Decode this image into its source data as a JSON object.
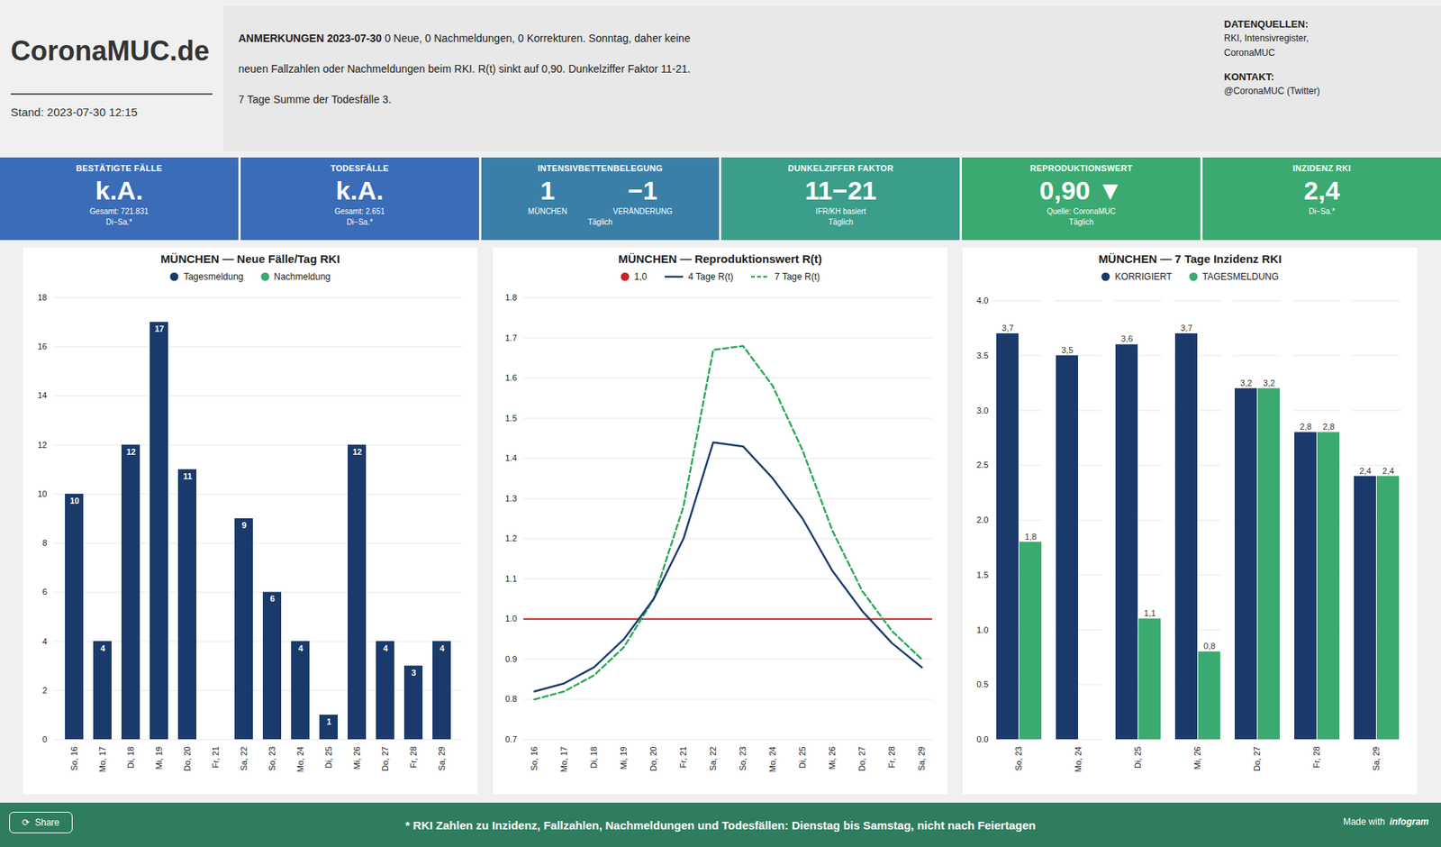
{
  "title": "CoronaMUC.de",
  "subtitle": "Stand: 2023-07-30 12:15",
  "background": "#f0f0f0",
  "panel_color": "#e8e8e8",
  "footer_color": "#2e7d5e",
  "header": [
    {
      "title": "ANMERKUNGEN 2023-07-30",
      "text": [
        " 0 Neue, 0 Nachmeldungen, 0 Korrekturen. Sonntag, daher keine",
        "neuen Fallzahlen oder Nachmeldungen beim RKI. R(t) sinkt auf 0,90. Dunkelziffer Faktor 11-21.",
        "7 Tage Summe der Todesfälle 3."
      ]
    },
    {
      "title": "DATENQUELLEN:",
      "text": [
        "RKI, Intensivregister,",
        "CoronaMUC"
      ]
    },
    {
      "title": "KONTAKT:",
      "text": [
        "@CoronaMUC (Twitter)"
      ]
    }
  ],
  "kpis": [
    {
      "title": "BESTÄTIGTE FÄLLE",
      "color": "#3b6cb7",
      "values": [
        "k.A."
      ],
      "lines": [
        "Gesamt: 721.831",
        "Di−Sa.*"
      ]
    },
    {
      "title": "TODESFÄLLE",
      "color": "#3b6cb7",
      "values": [
        "k.A."
      ],
      "lines": [
        "Gesamt: 2.651",
        "Di−Sa.*"
      ]
    },
    {
      "title": "INTENSIVBETTENBELEGUNG",
      "color": "#3a7fa8",
      "values": [
        "1",
        "−1"
      ],
      "labels": [
        "MÜNCHEN",
        "VERÄNDERUNG"
      ],
      "lines": [
        "Täglich"
      ]
    },
    {
      "title": "DUNKELZIFFER FAKTOR",
      "color": "#3a9e8a",
      "values": [
        "11−21"
      ],
      "lines": [
        "IFR/KH basiert",
        "Täglich"
      ]
    },
    {
      "title": "REPRODUKTIONSWERT",
      "color": "#3aaa70",
      "values": [
        "0,90 ▼"
      ],
      "lines": [
        "Quelle: CoronaMUC",
        "Täglich"
      ]
    },
    {
      "title": "INZIDENZ RKI",
      "color": "#3aaa70",
      "values": [
        "2,4"
      ],
      "lines": [
        "Di−Sa.*"
      ]
    }
  ],
  "chart_data": [
    {
      "type": "bar",
      "title": "MÜNCHEN — Neue Fälle/Tag RKI",
      "stacked": true,
      "categories": [
        "So, 16",
        "Mo, 17",
        "Di, 18",
        "Mi, 19",
        "Do, 20",
        "Fr, 21",
        "Sa, 22",
        "So, 23",
        "Mo, 24",
        "Di, 25",
        "Mi, 26",
        "Do, 27",
        "Fr, 28",
        "Sa, 29"
      ],
      "series": [
        {
          "name": "Tagesmeldung",
          "color": "#1a3a6b",
          "values": [
            10,
            4,
            12,
            17,
            11,
            0,
            9,
            6,
            4,
            1,
            12,
            4,
            3,
            4
          ],
          "value_labels": [
            "10",
            "4",
            "12",
            "17",
            "11",
            null,
            "9",
            "6",
            "4",
            "1",
            "12",
            "4",
            "3",
            "4"
          ]
        },
        {
          "name": "Nachmeldung",
          "color": "#3aaa70",
          "values": [
            0,
            0,
            0,
            0,
            0,
            0,
            0,
            0,
            0,
            0,
            0,
            0,
            0,
            0
          ]
        }
      ],
      "ylim": [
        0,
        18
      ],
      "yticks": [
        0,
        2,
        4,
        6,
        8,
        10,
        12,
        14,
        16,
        18
      ],
      "grid": true,
      "legend": "top",
      "data_labels": true
    },
    {
      "type": "line",
      "title": "MÜNCHEN — Reproduktionswert R(t)",
      "categories": [
        "So, 16",
        "Mo, 17",
        "Di, 18",
        "Mi, 19",
        "Do, 20",
        "Fr, 21",
        "Sa, 22",
        "So, 23",
        "Mo, 24",
        "Di, 25",
        "Mi, 26",
        "Do, 27",
        "Fr, 28",
        "Sa, 29"
      ],
      "reference_lines": [
        {
          "name": "1,0",
          "value": 1.0,
          "color": "#cc2222",
          "marker": "circle"
        }
      ],
      "series": [
        {
          "name": "4 Tage R(t)",
          "color": "#1a3a6b",
          "line_style": "solid",
          "values": [
            0.82,
            0.84,
            0.88,
            0.95,
            1.05,
            1.2,
            1.44,
            1.43,
            1.35,
            1.25,
            1.12,
            1.02,
            0.94,
            0.88
          ]
        },
        {
          "name": "7 Tage R(t)",
          "color": "#2aaa55",
          "line_style": "dashed",
          "values": [
            0.8,
            0.82,
            0.86,
            0.93,
            1.05,
            1.28,
            1.67,
            1.68,
            1.58,
            1.42,
            1.22,
            1.07,
            0.97,
            0.9
          ]
        }
      ],
      "ylim": [
        0.7,
        1.8
      ],
      "yticks": [
        0.7,
        0.8,
        0.9,
        {
          "value": 1.0,
          "label": "1.0"
        },
        1.1,
        1.2,
        1.3,
        1.4,
        1.5,
        1.6,
        1.7,
        1.8
      ],
      "grid": true,
      "legend": "top"
    },
    {
      "type": "bar",
      "title": "MÜNCHEN — 7 Tage Inzidenz RKI",
      "stacked": false,
      "categories": [
        "So, 23",
        "Mo, 24",
        "Di, 25",
        "Mi, 26",
        "Do, 27",
        "Fr, 28",
        "Sa, 29"
      ],
      "series": [
        {
          "name": "KORRIGIERT",
          "color": "#1a3a6b",
          "values": [
            3.7,
            3.5,
            3.6,
            3.7,
            3.2,
            2.8,
            2.4
          ],
          "value_labels": [
            "3,7",
            "3,5",
            "3,6",
            "3,7",
            "3,2",
            "2,8",
            "2,4"
          ]
        },
        {
          "name": "TAGESMELDUNG",
          "color": "#3aaa70",
          "values": [
            1.8,
            0.0,
            1.1,
            0.8,
            3.2,
            2.8,
            2.4
          ],
          "value_labels": [
            "1,8",
            null,
            "1,1",
            "0,8",
            "3,2",
            "2,8",
            "2,4"
          ]
        }
      ],
      "ylim": [
        0,
        4.0
      ],
      "yticks": [
        {
          "value": 0,
          "label": "0.0"
        },
        0.5,
        {
          "value": 1.0,
          "label": "1.0"
        },
        1.5,
        {
          "value": 2.0,
          "label": "2.0"
        },
        2.5,
        {
          "value": 3.0,
          "label": "3.0"
        },
        3.5,
        {
          "value": 4.0,
          "label": "4.0"
        }
      ],
      "grid": true,
      "legend": "top",
      "data_labels": true
    }
  ],
  "footer": "* RKI Zahlen zu Inzidenz, Fallzahlen, Nachmeldungen und Todesfällen: Dienstag bis Samstag, nicht nach Feiertagen",
  "footer_notes": [
    "⟳  Share",
    "Made with",
    "infogram"
  ]
}
